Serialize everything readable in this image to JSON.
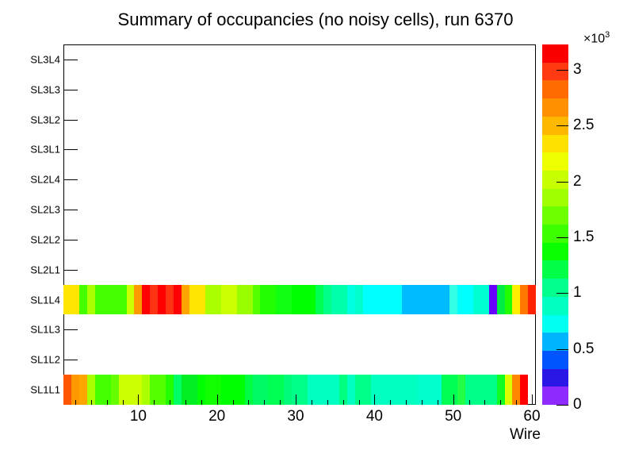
{
  "title": "Summary of occupancies (no noisy cells), run 6370",
  "axes": {
    "x_label": "Wire",
    "x_major_ticks": [
      10,
      20,
      30,
      40,
      50,
      60
    ],
    "x_minor_tick_step": 2,
    "y_labels": [
      "SL3L4",
      "SL3L3",
      "SL3L2",
      "SL3L1",
      "SL2L4",
      "SL2L3",
      "SL2L2",
      "SL2L1",
      "SL1L4",
      "SL1L3",
      "SL1L2",
      "SL1L1"
    ]
  },
  "colorbar": {
    "multiplier_base": "×10",
    "multiplier_exp": "3",
    "tick_values": [
      3,
      2.5,
      2,
      1.5,
      1,
      0.5,
      0
    ],
    "tick_labels": [
      "3",
      "2.5",
      "2",
      "1.5",
      "1",
      "0.5",
      "0"
    ],
    "z_max_k": 3.227,
    "palette_top_to_bottom": [
      "#fa0000",
      "#ff3a13",
      "#ff6b00",
      "#ff9100",
      "#ffb800",
      "#ffe100",
      "#eeff00",
      "#c8ff00",
      "#a0ff00",
      "#6eff00",
      "#3cff00",
      "#0aff00",
      "#00ff46",
      "#00ff8c",
      "#00ffc3",
      "#00fff0",
      "#00b4ff",
      "#0055ff",
      "#2b16e8",
      "#8f2bff"
    ]
  },
  "chart_data": {
    "type": "heatmap",
    "title": "Summary of occupancies (no noisy cells), run 6370",
    "xlabel": "Wire",
    "x_range": [
      1,
      60
    ],
    "value_units": "counts (×10³)",
    "empty_layers": [
      "SL3L4",
      "SL3L3",
      "SL3L2",
      "SL3L1",
      "SL2L4",
      "SL2L3",
      "SL2L2",
      "SL2L1",
      "SL1L3",
      "SL1L2"
    ],
    "rows": [
      {
        "layer": "SL1L4",
        "cell_colors": [
          "#ffe600",
          "#ffe600",
          "#44ff00",
          "#aaff00",
          "#44ff00",
          "#44ff00",
          "#44ff00",
          "#44ff00",
          "#ccff00",
          "#ff9900",
          "#ff0000",
          "#ff3311",
          "#ff0000",
          "#ff3311",
          "#ff0000",
          "#ffa500",
          "#ffe600",
          "#ffe600",
          "#aaff00",
          "#aaff00",
          "#ccff00",
          "#ccff00",
          "#99ff00",
          "#99ff00",
          "#55ff00",
          "#22ff00",
          "#22ff00",
          "#11ff11",
          "#11ff11",
          "#00ff00",
          "#00ff00",
          "#00ff00",
          "#00ff55",
          "#00ff88",
          "#00ffaa",
          "#00ffaa",
          "#00ffe0",
          "#00ffcc",
          "#00ffff",
          "#00ffff",
          "#00ffff",
          "#00ffff",
          "#00ffff",
          "#00bbff",
          "#00bbff",
          "#00bbff",
          "#00bbff",
          "#00bbff",
          "#00bbff",
          "#33ffe6",
          "#00ffff",
          "#00ffff",
          "#00ffd0",
          "#00ffd0",
          "#6600ff",
          "#00ee44",
          "#22ff00",
          "#ffee00",
          "#ff7700",
          "#ff2200"
        ],
        "values_k": [
          2.52,
          2.52,
          1.95,
          2.28,
          1.95,
          1.95,
          1.95,
          1.95,
          2.38,
          2.7,
          3.18,
          3.05,
          3.18,
          3.05,
          3.18,
          2.68,
          2.52,
          2.52,
          2.28,
          2.28,
          2.38,
          2.38,
          2.2,
          2.2,
          2.0,
          1.85,
          1.85,
          1.78,
          1.78,
          1.75,
          1.75,
          1.75,
          1.55,
          1.42,
          1.35,
          1.35,
          1.18,
          1.25,
          1.05,
          1.05,
          1.05,
          1.05,
          1.05,
          0.85,
          0.85,
          0.85,
          0.85,
          0.85,
          0.85,
          1.15,
          1.05,
          1.05,
          1.25,
          1.25,
          0.1,
          1.68,
          1.85,
          2.45,
          2.8,
          3.05
        ]
      },
      {
        "layer": "SL1L1",
        "cell_colors": [
          "#ff5500",
          "#ff9900",
          "#ffa500",
          "#aaff00",
          "#44ff00",
          "#44ff00",
          "#66ff00",
          "#ccff00",
          "#ccff00",
          "#ccff00",
          "#aaff00",
          "#55ff00",
          "#55ff00",
          "#22ff00",
          "#00ff66",
          "#00ee22",
          "#00ee22",
          "#00ff00",
          "#11ff00",
          "#11ff00",
          "#00ff00",
          "#00ff00",
          "#00ff00",
          "#00ff44",
          "#00f966",
          "#00f966",
          "#00ff55",
          "#00ff55",
          "#00fa7a",
          "#00ff88",
          "#00ff88",
          "#00ffc0",
          "#00ffc0",
          "#00ffc0",
          "#00ffc0",
          "#00ff80",
          "#00ffc0",
          "#00ff88",
          "#00ff88",
          "#00ffc0",
          "#00ffc0",
          "#00ffc0",
          "#00ffc0",
          "#00ffc0",
          "#00ffc0",
          "#00ffcc",
          "#00ffcc",
          "#00ffcc",
          "#00ff55",
          "#00ff55",
          "#22ff44",
          "#00ff88",
          "#00ff88",
          "#00ff88",
          "#00ff88",
          "#11ff22",
          "#ddff00",
          "#ff8800",
          "#ff0000",
          null
        ],
        "values_k": [
          2.88,
          2.7,
          2.68,
          2.28,
          1.95,
          1.95,
          2.05,
          2.38,
          2.38,
          2.38,
          2.28,
          2.0,
          2.0,
          1.85,
          1.5,
          1.68,
          1.68,
          1.75,
          1.78,
          1.78,
          1.75,
          1.75,
          1.75,
          1.6,
          1.5,
          1.5,
          1.55,
          1.55,
          1.45,
          1.42,
          1.42,
          1.25,
          1.25,
          1.25,
          1.25,
          1.42,
          1.25,
          1.42,
          1.42,
          1.25,
          1.25,
          1.25,
          1.25,
          1.25,
          1.25,
          1.25,
          1.25,
          1.25,
          1.55,
          1.55,
          1.6,
          1.42,
          1.42,
          1.42,
          1.42,
          1.68,
          2.45,
          2.75,
          3.18,
          null
        ]
      }
    ]
  }
}
